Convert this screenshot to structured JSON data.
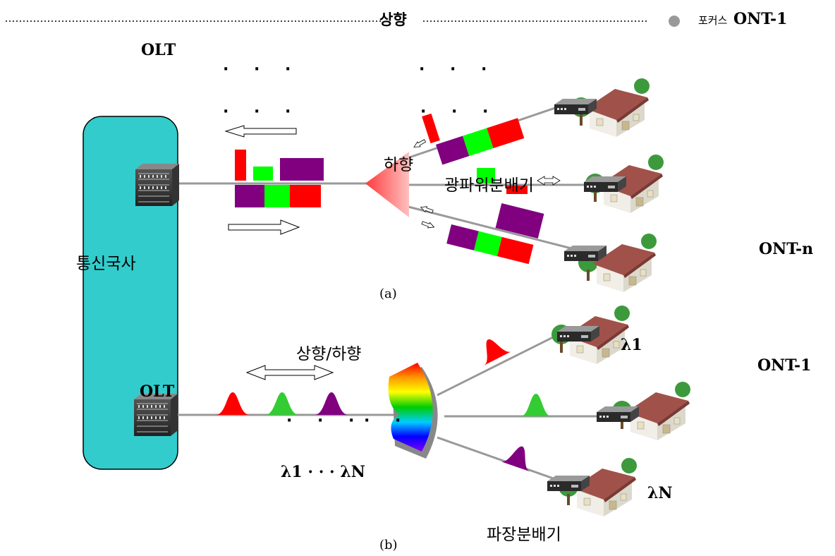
{
  "header": {
    "upstream_label": "상향",
    "focus_prefix": "포커스",
    "focus_label": "ONT-1"
  },
  "part_a": {
    "olt_label": "OLT",
    "central_office_label": "통신국사",
    "downstream_label": "하향",
    "splitter_label": "광파워분배기",
    "ont_n_label": "ONT-n",
    "caption": "(a)",
    "dots_1": "· · ·",
    "dots_2": "· · ·",
    "dots_3": "· · ·",
    "dots_4": "· · ·"
  },
  "part_b": {
    "olt_label": "OLT",
    "updown_label": "상향/하향",
    "ont_1_label": "ONT-1",
    "lambda_1_label": "λ1",
    "lambda_n_label": "λN",
    "lambda_range_label": "λ1 · · · λN",
    "dots_1": "· · ·",
    "dots_2": "· ·",
    "demux_label": "파장분배기",
    "caption": "(b)"
  },
  "colors": {
    "central_office_fill": "#33cccc",
    "red": "#ff0000",
    "green": "#00ff00",
    "purple": "#800080",
    "fiber": "#999999",
    "splitter": "#ff7f7f",
    "roof": "#a0524a",
    "tree": "#339933"
  },
  "icons": [
    "olt-device-icon",
    "ont-device-icon",
    "house-icon",
    "tree-icon",
    "arrow-left-icon",
    "arrow-right-icon",
    "double-arrow-icon",
    "splitter-icon",
    "wavelength-demux-icon",
    "gaussian-pulse-icon"
  ]
}
